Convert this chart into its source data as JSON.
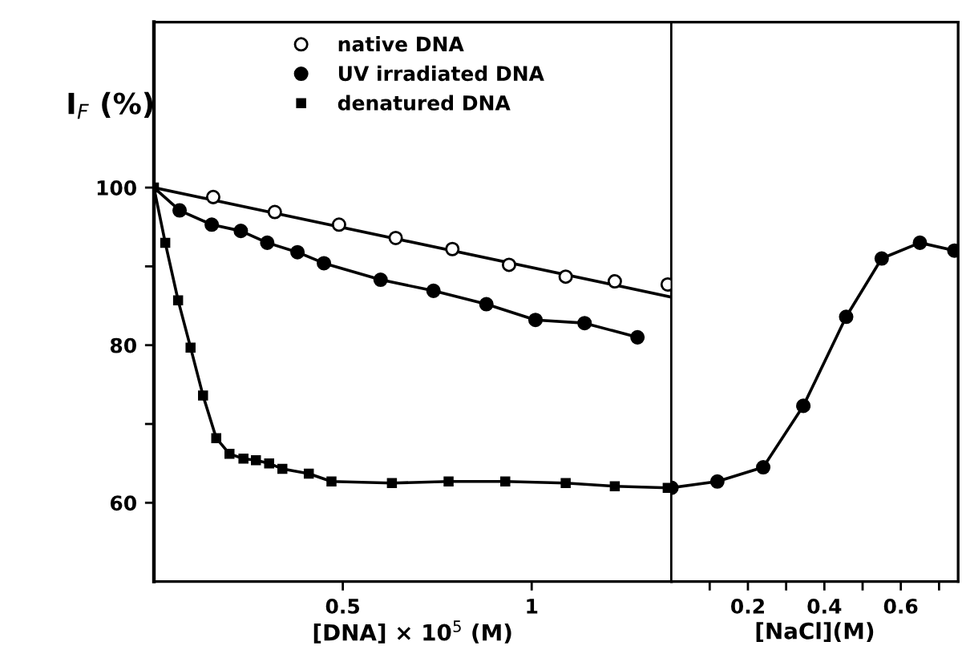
{
  "chart_data": [
    {
      "type": "scatter",
      "ylabel": "I$_{F}$ (%)",
      "xlabel": "[DNA] × 10$^{5}$ (M)",
      "xlim": [
        0,
        1.37
      ],
      "xticks": [
        0.5,
        1
      ],
      "ylim": [
        50,
        121
      ],
      "yticks": [
        60,
        {
          "value": 70,
          "label": null
        },
        80,
        {
          "value": 90,
          "label": null
        },
        100
      ],
      "legend": "top",
      "grid": false,
      "series": [
        {
          "name": "native DNA",
          "marker": "circle",
          "color": "#ffffff",
          "x": [
            0.157,
            0.32,
            0.49,
            0.64,
            0.79,
            0.94,
            1.09,
            1.22,
            1.36
          ],
          "values": [
            98.8,
            96.9,
            95.3,
            93.6,
            92.2,
            90.2,
            88.7,
            88.1,
            87.7
          ]
        },
        {
          "name": "UV irradiated DNA",
          "type": "line",
          "marker": "circle",
          "color": "#000000",
          "x": [
            0.068,
            0.153,
            0.23,
            0.3,
            0.38,
            0.45,
            0.6,
            0.74,
            0.88,
            1.01,
            1.14,
            1.28
          ],
          "values": [
            97.1,
            95.3,
            94.5,
            93.0,
            91.8,
            90.4,
            88.3,
            86.9,
            85.2,
            83.2,
            82.8,
            81.0
          ]
        },
        {
          "name": "denatured DNA",
          "type": "line",
          "marker": "square",
          "color": "#000000",
          "x": [
            0,
            0.03,
            0.064,
            0.097,
            0.13,
            0.165,
            0.2,
            0.237,
            0.27,
            0.305,
            0.34,
            0.41,
            0.47,
            0.63,
            0.78,
            0.93,
            1.09,
            1.22,
            1.36
          ],
          "values": [
            100,
            93.0,
            85.7,
            79.7,
            73.6,
            68.2,
            66.2,
            65.6,
            65.4,
            65.0,
            64.3,
            63.7,
            62.7,
            62.5,
            62.7,
            62.7,
            62.5,
            62.1,
            61.9
          ]
        },
        {
          "type": "line",
          "marker": "none",
          "color": "#000000",
          "x": [
            0,
            1.37
          ],
          "values": [
            100,
            86.1
          ]
        },
        {
          "type": "line",
          "marker": "none",
          "color": "#000000",
          "x": [
            0,
            0.068
          ],
          "values": [
            100,
            97.1
          ]
        }
      ]
    },
    {
      "type": "line",
      "xlabel": "[NaCl](M)",
      "xlim": [
        0,
        0.75
      ],
      "xticks": [
        {
          "value": 0.1,
          "label": null
        },
        0.2,
        {
          "value": 0.3,
          "label": null
        },
        0.4,
        {
          "value": 0.5,
          "label": null
        },
        0.6,
        {
          "value": 0.7,
          "label": null
        }
      ],
      "ylim": [
        50,
        121
      ],
      "tick_labels": "x",
      "grid": false,
      "series": [
        {
          "marker": "circle",
          "color": "#000000",
          "x": [
            0,
            0.12,
            0.24,
            0.345,
            0.457,
            0.55,
            0.65,
            0.74
          ],
          "values": [
            61.9,
            62.7,
            64.5,
            72.3,
            83.6,
            91.0,
            93.0,
            92.0
          ]
        }
      ]
    }
  ]
}
